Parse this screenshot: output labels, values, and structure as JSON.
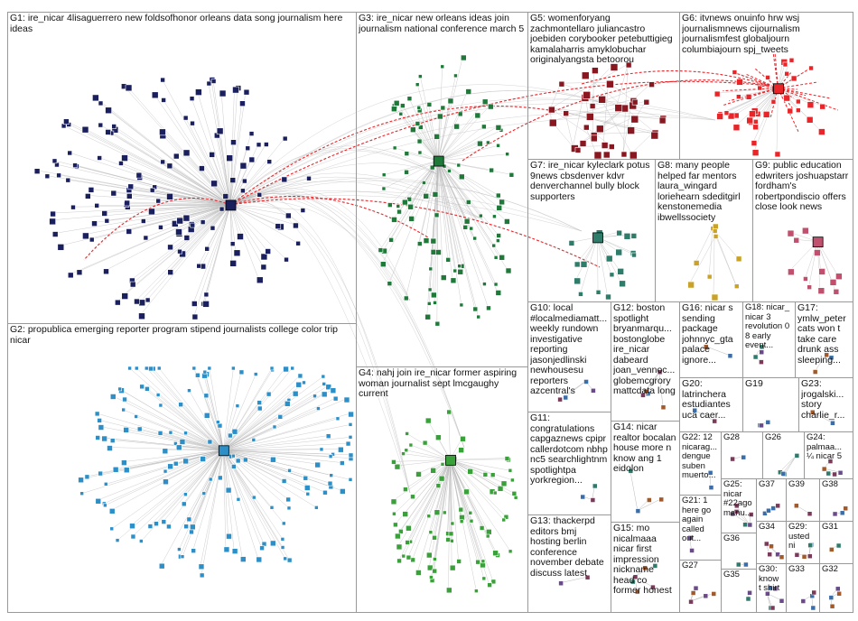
{
  "colors": {
    "background": "#ffffff",
    "panel_border": "#999999",
    "edge": "#b8b8b8",
    "edge_highlight": "#e8262a",
    "groups": {
      "G1": "#1a1f5e",
      "G2": "#2c8fc7",
      "G3": "#1f7a3a",
      "G4": "#3aa13a",
      "G5": "#8a1620",
      "G6": "#e8262a",
      "G7": "#2e7d6b",
      "G8": "#c9a227",
      "G9": "#c0506e",
      "other": "#5a6b8c"
    }
  },
  "groups": [
    {
      "id": "G1",
      "label": "G1: ire_nicar 4lisaguerrero new foldsofhonor orleans data song journalism here ideas"
    },
    {
      "id": "G2",
      "label": "G2: propublica emerging reporter program stipend journalists college color trip nicar"
    },
    {
      "id": "G3",
      "label": "G3: ire_nicar new orleans ideas join journalism national conference march 5"
    },
    {
      "id": "G4",
      "label": "G4: nahj join ire_nicar former aspiring woman journalist sept lmcgaughy current"
    },
    {
      "id": "G5",
      "label": "G5: womenforyang zachmontellaro juliancastro joebiden corybooker petebuttigieg kamalaharris amyklobuchar originalyangsta betoorou"
    },
    {
      "id": "G6",
      "label": "G6: itvnews onuinfo hrw wsj journalismnews cijournalism journalismfest globaljourn columbiajourn spj_tweets"
    },
    {
      "id": "G7",
      "label": "G7: ire_nicar kyleclark potus 9news cbsdenver kdvr denverchannel bully block supporters"
    },
    {
      "id": "G8",
      "label": "G8: many people helped far mentors laura_wingard loriehearn sdeditgirl kenstonemedia ibwellssociety"
    },
    {
      "id": "G9",
      "label": "G9: public education edwriters joshuapstarr fordham's robertpondiscio offers close look news"
    },
    {
      "id": "G10",
      "label": "G10: local #localmediamatt... weekly rundown investigative reporting jasonjedlinski newhousesu reporters azcentral's"
    },
    {
      "id": "G11",
      "label": "G11: congratulations capgaznews cpipr callerdotcom nbhp nc5 searchlightnm spotlightpa yorkregion..."
    },
    {
      "id": "G12",
      "label": "G12: boston spotlight bryanmarqu... bostonglobe ire_nicar dabeard joan_vennoc... globemcgrory mattcdata long"
    },
    {
      "id": "G13",
      "label": "G13: thackerpd editors bmj hosting berlin conference november debate discuss latest"
    },
    {
      "id": "G14",
      "label": "G14: nicar realtor bocalan house more n know ang 1 eidolon"
    },
    {
      "id": "G15",
      "label": "G15: mo nicalmaaa nicar first impression nickname head co former honest"
    },
    {
      "id": "G16",
      "label": "G16: nicar s sending package johnnyc_gta palace ignore..."
    },
    {
      "id": "G17",
      "label": "G17: ymlw_peter cats won t take care drunk ass sleeping..."
    },
    {
      "id": "G18",
      "label": "G18: nicar_ nicar 3 revolution 0 8 early event..."
    },
    {
      "id": "G19",
      "label": "G19"
    },
    {
      "id": "G20",
      "label": "G20: latrinchera estudiantes uca caer..."
    },
    {
      "id": "G21",
      "label": "G21: 1 here go again called out..."
    },
    {
      "id": "G22",
      "label": "G22: 12 nicarag... dengue suben muerto..."
    },
    {
      "id": "G23",
      "label": "G23: jrogalski... story charlie_r..."
    },
    {
      "id": "G24",
      "label": "G24: palmaa... ¼ nicar 5"
    },
    {
      "id": "G25",
      "label": "G25: nicar #22ago manu..."
    },
    {
      "id": "G26",
      "label": "G26"
    },
    {
      "id": "G27",
      "label": "G27"
    },
    {
      "id": "G28",
      "label": "G28"
    },
    {
      "id": "G29",
      "label": "G29: usted ni"
    },
    {
      "id": "G30",
      "label": "G30: know t shirt"
    },
    {
      "id": "G31",
      "label": "G31"
    },
    {
      "id": "G32",
      "label": "G32"
    },
    {
      "id": "G33",
      "label": "G33"
    },
    {
      "id": "G34",
      "label": "G34"
    },
    {
      "id": "G35",
      "label": "G35"
    },
    {
      "id": "G36",
      "label": "G36"
    },
    {
      "id": "G37",
      "label": "G37"
    },
    {
      "id": "G38",
      "label": "G38"
    },
    {
      "id": "G39",
      "label": "G39"
    }
  ]
}
